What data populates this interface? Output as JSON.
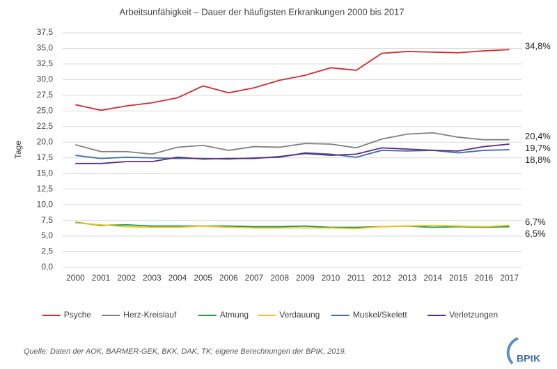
{
  "chart_data": {
    "type": "line",
    "title": "Arbeitsunfähigkeit – Dauer der häufigsten Erkrankungen 2000 bis 2017",
    "y_label": "Tage",
    "categories": [
      "2000",
      "2001",
      "2002",
      "2003",
      "2004",
      "2005",
      "2006",
      "2007",
      "2008",
      "2009",
      "2010",
      "2011",
      "2012",
      "2013",
      "2014",
      "2015",
      "2016",
      "2017"
    ],
    "series": [
      {
        "name": "Psyche",
        "color": "#d42a2f",
        "end_label": "34,8%",
        "values": [
          26.0,
          25.1,
          25.8,
          26.3,
          27.1,
          29.0,
          27.9,
          28.7,
          29.9,
          30.7,
          31.9,
          31.5,
          34.2,
          34.5,
          34.4,
          34.3,
          34.6,
          34.8
        ]
      },
      {
        "name": "Herz-Kreislauf",
        "color": "#808080",
        "end_label": "20,4%",
        "values": [
          19.6,
          18.5,
          18.5,
          18.1,
          19.2,
          19.5,
          18.7,
          19.3,
          19.2,
          19.8,
          19.7,
          19.1,
          20.5,
          21.3,
          21.5,
          20.8,
          20.4,
          20.4
        ]
      },
      {
        "name": "Atmung",
        "color": "#1f9a48",
        "end_label": "6,5%",
        "values": [
          7.2,
          6.7,
          6.8,
          6.6,
          6.6,
          6.6,
          6.6,
          6.5,
          6.5,
          6.6,
          6.4,
          6.4,
          6.5,
          6.6,
          6.4,
          6.5,
          6.4,
          6.5
        ]
      },
      {
        "name": "Verdauung",
        "color": "#f2c318",
        "end_label": "6,7%",
        "values": [
          7.1,
          6.8,
          6.5,
          6.4,
          6.4,
          6.6,
          6.4,
          6.3,
          6.3,
          6.3,
          6.3,
          6.2,
          6.5,
          6.6,
          6.7,
          6.6,
          6.5,
          6.7
        ]
      },
      {
        "name": "Muskel/Skelett",
        "color": "#3d6ea8",
        "end_label": "18,8%",
        "values": [
          17.9,
          17.4,
          17.6,
          17.5,
          17.4,
          17.4,
          17.3,
          17.5,
          17.6,
          18.3,
          18.1,
          17.6,
          18.7,
          18.6,
          18.7,
          18.3,
          18.7,
          18.8
        ]
      },
      {
        "name": "Verletzungen",
        "color": "#5c2a85",
        "end_label": "19,7%",
        "values": [
          16.6,
          16.6,
          16.9,
          16.9,
          17.6,
          17.3,
          17.4,
          17.4,
          17.7,
          18.2,
          17.9,
          18.1,
          19.1,
          18.9,
          18.7,
          18.6,
          19.3,
          19.7
        ]
      }
    ],
    "ylim": [
      0,
      37.5
    ],
    "yticks": [
      {
        "value": 0,
        "label": "0,0"
      },
      {
        "value": 2.5,
        "label": "2,5"
      },
      {
        "value": 5,
        "label": "5,0"
      },
      {
        "value": 7.5,
        "label": "7,5"
      },
      {
        "value": 10,
        "label": "10,0"
      },
      {
        "value": 12.5,
        "label": "12,5"
      },
      {
        "value": 15,
        "label": "15,0"
      },
      {
        "value": 17.5,
        "label": "17,5"
      },
      {
        "value": 20,
        "label": "20,0"
      },
      {
        "value": 22.5,
        "label": "22,5"
      },
      {
        "value": 25,
        "label": "25,0"
      },
      {
        "value": 27.5,
        "label": "27,5"
      },
      {
        "value": 30,
        "label": "30,0"
      },
      {
        "value": 32.5,
        "label": "32,5"
      },
      {
        "value": 35,
        "label": "35,0"
      },
      {
        "value": 37.5,
        "label": "37,5"
      }
    ],
    "grid": true,
    "legend": "bottom"
  },
  "source": "Quelle: Daten der AOK, BARMER-GEK, BKK, DAK, TK; eigene Berechnungen der BPtK, 2019.",
  "logo": "BPtK"
}
